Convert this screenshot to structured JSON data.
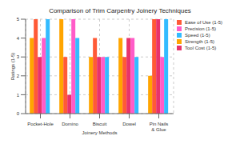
{
  "chart_data": {
    "type": "bar",
    "title": "Comparison of Trim Carpentry Joinery Techniques",
    "x_label": "Joinery Methods",
    "y_label": "Ratings (1-5)",
    "categories": [
      "Pocket-Hole",
      "Domino",
      "Biscuit",
      "Dowel",
      "Pin Nails & Glue"
    ],
    "series": [
      {
        "name": "Strength (1-5)",
        "color": "#ffa500",
        "values": [
          4,
          5,
          3,
          4,
          2
        ]
      },
      {
        "name": "Ease of Use (1-5)",
        "color": "#ff5a36",
        "values": [
          5,
          3,
          4,
          3,
          5
        ]
      },
      {
        "name": "Tool Cost (1-5)",
        "color": "#e8336b",
        "values": [
          3,
          1,
          3,
          4,
          5
        ]
      },
      {
        "name": "Precision (1-5)",
        "color": "#ff5cc8",
        "values": [
          4,
          5,
          3,
          4,
          3
        ]
      },
      {
        "name": "Speed (1-5)",
        "color": "#33bbff",
        "values": [
          5,
          4,
          3,
          3,
          5
        ]
      }
    ],
    "ylim": [
      0,
      5
    ],
    "yticks": [
      0,
      1,
      2,
      3,
      4,
      5
    ],
    "grid": true,
    "legend": "upper right"
  }
}
